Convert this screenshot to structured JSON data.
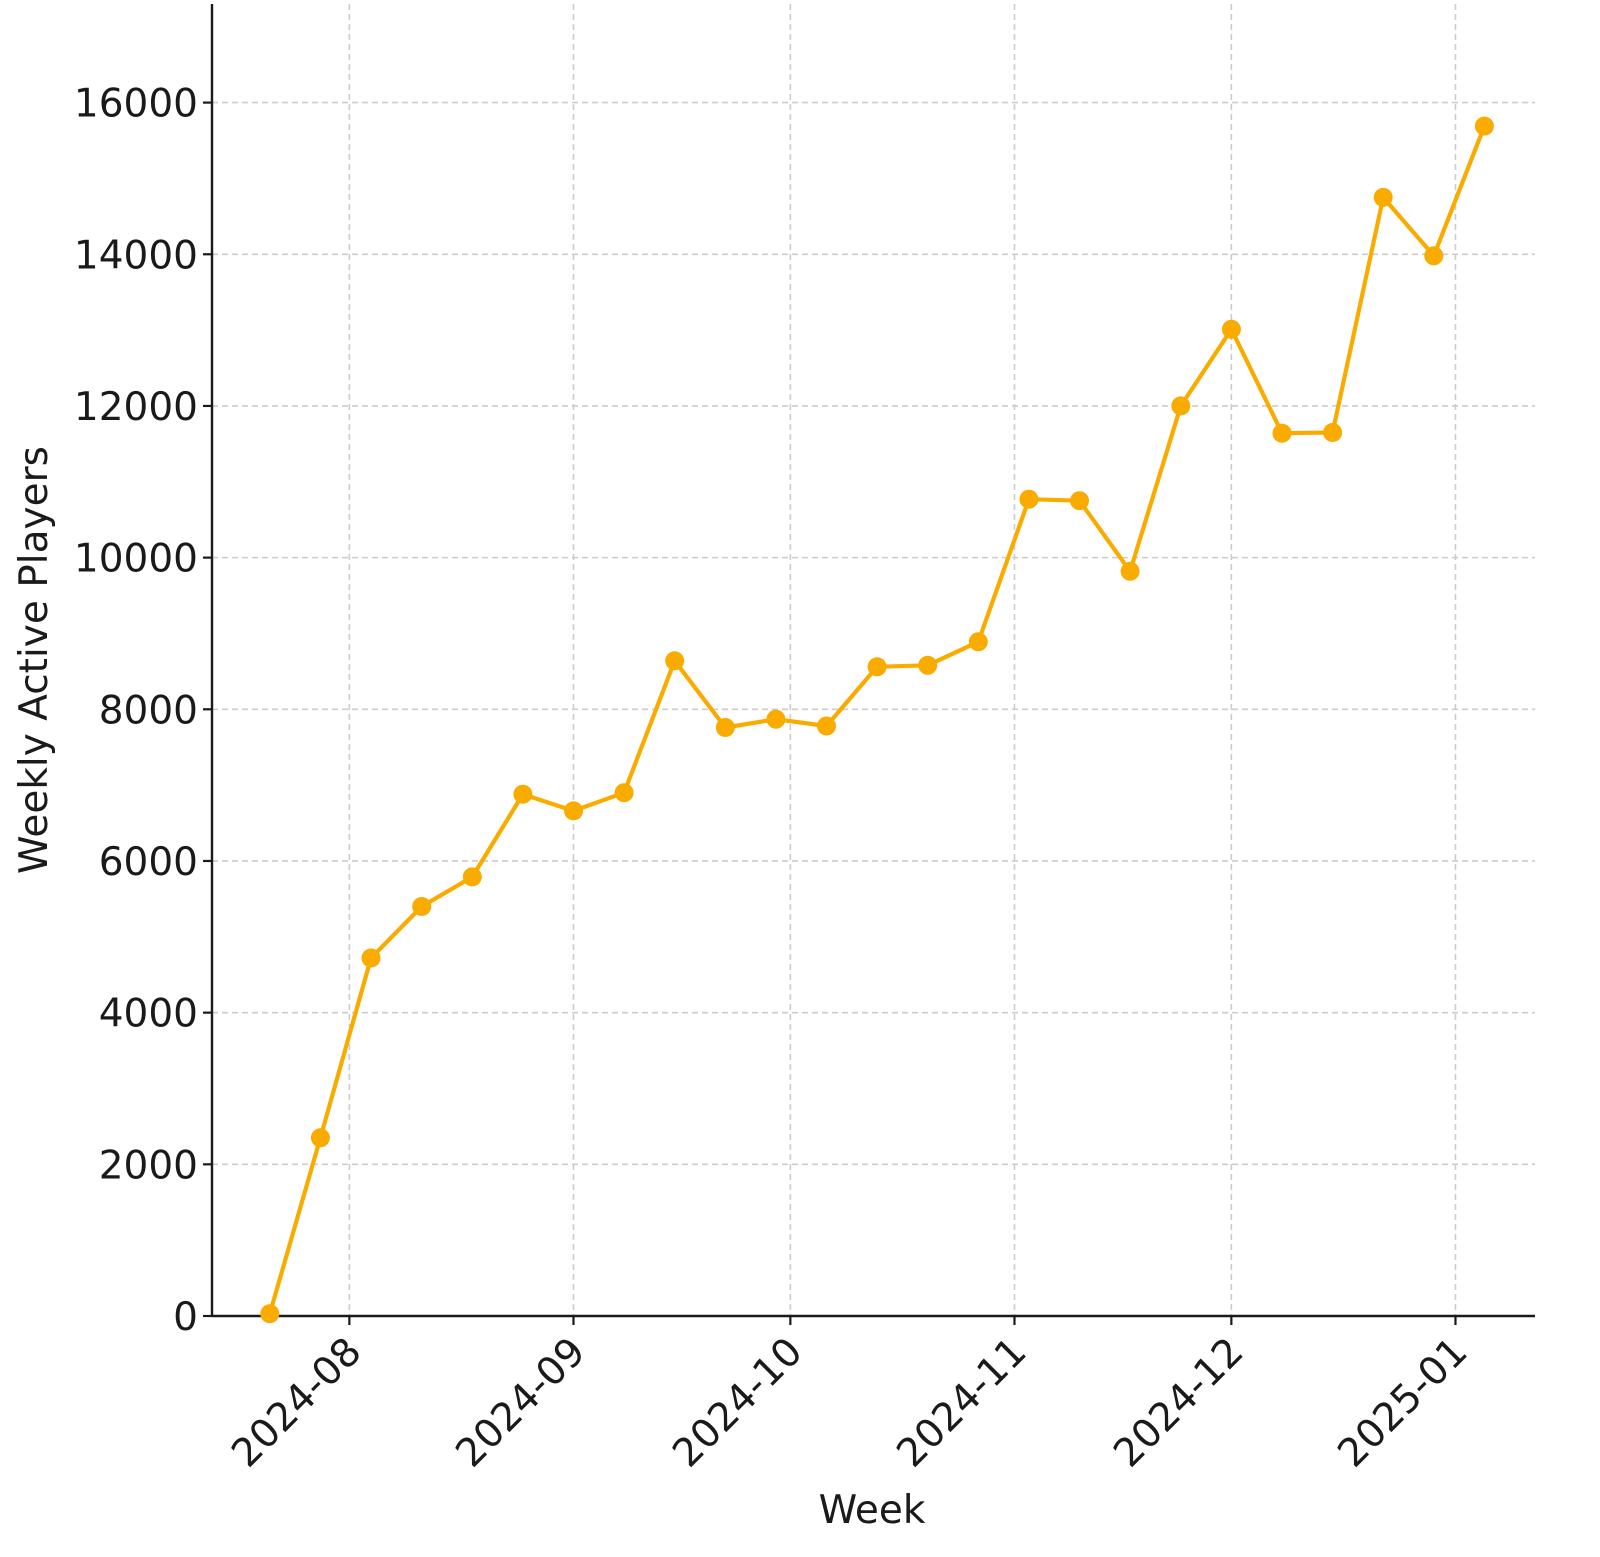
{
  "chart_data": {
    "type": "line",
    "xlabel": "Week",
    "ylabel": "Weekly Active Players",
    "x_ticks": [
      "2024-08",
      "2024-09",
      "2024-10",
      "2024-11",
      "2024-12",
      "2025-01"
    ],
    "y_ticks": [
      0,
      2000,
      4000,
      6000,
      8000,
      10000,
      12000,
      14000,
      16000
    ],
    "xlim": [
      "2024-07-13",
      "2025-01-12"
    ],
    "ylim": [
      0,
      17300
    ],
    "grid": true,
    "marker": "circle",
    "color": "#f9ab00",
    "series": [
      {
        "x": [
          "2024-07-21",
          "2024-07-28",
          "2024-08-04",
          "2024-08-11",
          "2024-08-18",
          "2024-08-25",
          "2024-09-01",
          "2024-09-08",
          "2024-09-15",
          "2024-09-22",
          "2024-09-29",
          "2024-10-06",
          "2024-10-13",
          "2024-10-20",
          "2024-10-27",
          "2024-11-03",
          "2024-11-10",
          "2024-11-17",
          "2024-11-24",
          "2024-12-01",
          "2024-12-08",
          "2024-12-15",
          "2024-12-22",
          "2024-12-29",
          "2025-01-05"
        ],
        "values": [
          30,
          2350,
          4720,
          5400,
          5790,
          6880,
          6660,
          6900,
          8640,
          7760,
          7870,
          7780,
          8560,
          8580,
          8890,
          10770,
          10750,
          9820,
          12000,
          13010,
          11640,
          11650,
          14750,
          13980,
          15690
        ]
      }
    ]
  }
}
